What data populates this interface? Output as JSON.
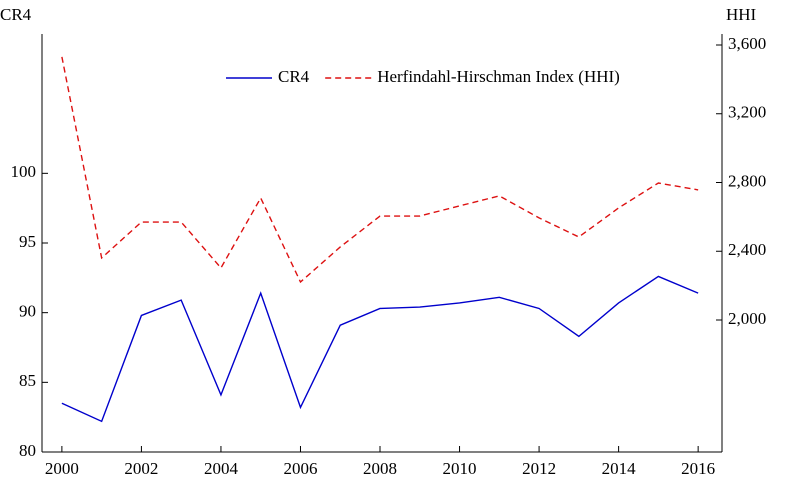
{
  "chart_data": {
    "type": "line",
    "y_label": "CR4",
    "y2_label": "HHI",
    "x": [
      2000,
      2001,
      2002,
      2003,
      2004,
      2005,
      2006,
      2007,
      2008,
      2009,
      2010,
      2011,
      2012,
      2013,
      2014,
      2015,
      2016
    ],
    "series": [
      {
        "name": "CR4",
        "color": "#0000cc",
        "dash": false,
        "values": [
          83.5,
          82.2,
          89.8,
          90.9,
          84.1,
          91.4,
          83.2,
          89.1,
          90.3,
          90.4,
          90.7,
          91.1,
          90.3,
          88.3,
          90.7,
          92.6,
          91.4
        ]
      },
      {
        "name": "Herfindahl-Hirschman Index (HHI)",
        "color": "#dd1111",
        "dash": true,
        "axis": "y2",
        "values": [
          3531,
          2361,
          2570,
          2570,
          2303,
          2710,
          2221,
          2425,
          2605,
          2605,
          2664,
          2722,
          2594,
          2483,
          2652,
          2797,
          2757
        ]
      }
    ],
    "xlim": [
      1999.5,
      2016.6
    ],
    "xticks": [
      2000,
      2002,
      2004,
      2006,
      2008,
      2010,
      2012,
      2014,
      2016
    ],
    "ylim": [
      80,
      110
    ],
    "yticks": [
      80,
      85,
      90,
      95,
      100
    ],
    "y2lim": [
      1232,
      3664
    ],
    "y2ticks": [
      {
        "value": 2000,
        "label": "2,000"
      },
      {
        "value": 2400,
        "label": "2,400"
      },
      {
        "value": 2800,
        "label": "2,800"
      },
      {
        "value": 3200,
        "label": "3,200"
      },
      {
        "value": 3600,
        "label": "3,600"
      }
    ],
    "legend": "upper right"
  }
}
